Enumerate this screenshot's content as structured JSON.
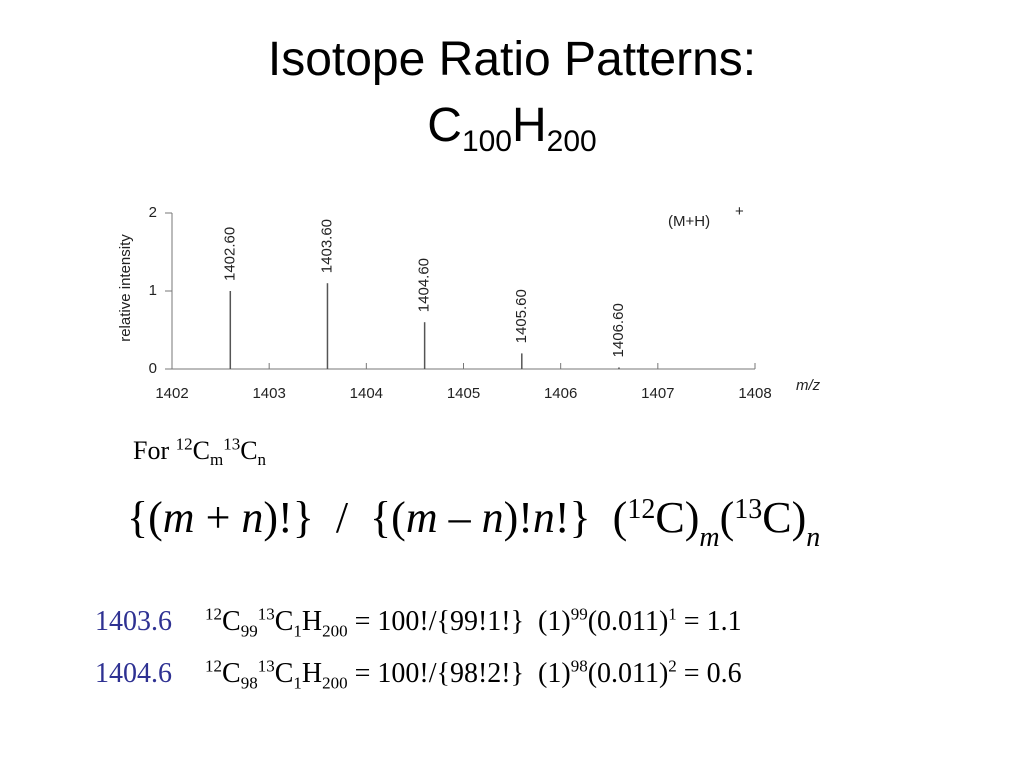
{
  "title": {
    "line1": "Isotope Ratio Patterns:",
    "line2": [
      {
        "t": "C"
      },
      {
        "sub": "100"
      },
      {
        "t": "H"
      },
      {
        "sub": "200"
      }
    ]
  },
  "chart_data": {
    "type": "stem",
    "x": [
      1402.6,
      1403.6,
      1404.6,
      1405.6,
      1406.6
    ],
    "x_labels": [
      "1402.60",
      "1403.60",
      "1404.60",
      "1405.60",
      "1406.60"
    ],
    "values": [
      1.0,
      1.1,
      0.6,
      0.2,
      0.02
    ],
    "color": "#555555",
    "xlim": [
      1402,
      1408
    ],
    "xticks": [
      1402,
      1403,
      1404,
      1405,
      1406,
      1407,
      1408
    ],
    "ylim": [
      0,
      2
    ],
    "yticks": [
      0,
      1,
      2
    ],
    "x_label": "m/z",
    "y_label": "relative intensity",
    "annotation": {
      "text": "(M+H)",
      "sup": "+"
    }
  },
  "for_line": [
    {
      "t": "For "
    },
    {
      "sup": "12"
    },
    {
      "t": "C"
    },
    {
      "sub": "m"
    },
    {
      "sup": "13"
    },
    {
      "t": "C"
    },
    {
      "sub": "n"
    }
  ],
  "formula": [
    {
      "t": "{("
    },
    {
      "it": "m"
    },
    {
      "t": " + "
    },
    {
      "it": "n"
    },
    {
      "t": ")!}  /  {("
    },
    {
      "it": "m"
    },
    {
      "t": " – "
    },
    {
      "it": "n"
    },
    {
      "t": ")!"
    },
    {
      "it": "n"
    },
    {
      "t": "!}  ("
    },
    {
      "sup": "12"
    },
    {
      "t": "C)"
    },
    {
      "isub": "m"
    },
    {
      "t": "("
    },
    {
      "sup": "13"
    },
    {
      "t": "C)"
    },
    {
      "isub": "n"
    }
  ],
  "calc_rows": [
    {
      "mz": "1403.6",
      "formula": [
        {
          "sup": "12"
        },
        {
          "t": "C"
        },
        {
          "sub": "99"
        },
        {
          "sup": "13"
        },
        {
          "t": "C"
        },
        {
          "sub": "1"
        },
        {
          "t": "H"
        },
        {
          "sub": "200"
        },
        {
          "t": " = 100!/{99!1!}  (1)"
        },
        {
          "sup": "99"
        },
        {
          "t": "(0.011)"
        },
        {
          "sup": "1"
        },
        {
          "t": " = 1.1"
        }
      ]
    },
    {
      "mz": "1404.6",
      "formula": [
        {
          "sup": "12"
        },
        {
          "t": "C"
        },
        {
          "sub": "98"
        },
        {
          "sup": "13"
        },
        {
          "t": "C"
        },
        {
          "sub": "1"
        },
        {
          "t": "H"
        },
        {
          "sub": "200"
        },
        {
          "t": " = 100!/{98!2!}  (1)"
        },
        {
          "sup": "98"
        },
        {
          "t": "(0.011)"
        },
        {
          "sup": "2"
        },
        {
          "t": " = 0.6"
        }
      ]
    }
  ]
}
